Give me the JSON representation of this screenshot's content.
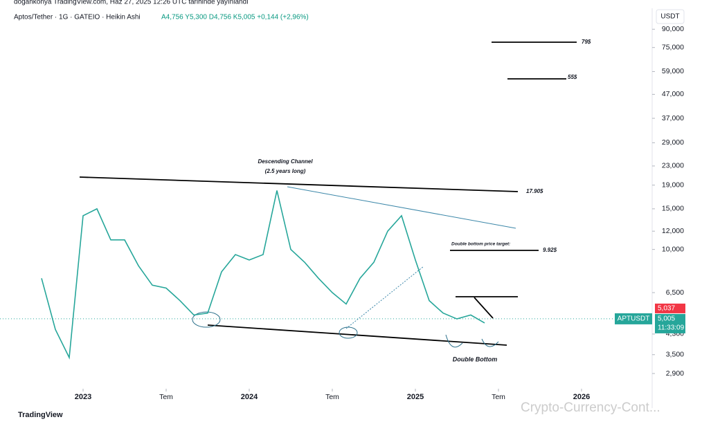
{
  "header": {
    "published": "dogankonya TradingView.com, Haz 27, 2025 12:26 UTC tarihinde yayınlandı",
    "symbol": "Aptos/Tether · 1G · GATEIO · Heikin Ashi",
    "ohlc": "A4,756 Y5,300 D4,756 K5,005 +0,144 (+2,96%)",
    "currency": "USDT",
    "brand": "TradingView",
    "watermark": "Crypto-Currency-Cont..."
  },
  "chart_data": {
    "type": "line",
    "log_scale": true,
    "color": "#26a69a",
    "series": [
      {
        "name": "APTUSDT",
        "color": "#26a69a",
        "values": [
          7.5,
          4.5,
          3.4,
          14,
          15,
          11,
          11,
          8.5,
          7,
          6.8,
          6,
          5.2,
          5.3,
          8,
          9.5,
          9,
          9.5,
          18,
          10,
          8.8,
          7.5,
          6.5,
          5.8,
          7.5,
          8.8,
          12,
          14,
          9,
          6,
          5.3,
          5,
          5.2,
          4.8
        ]
      }
    ],
    "x": [
      "2022-10",
      "2022-11",
      "2022-12",
      "2023-01",
      "2023-02",
      "2023-03",
      "2023-04",
      "2023-05",
      "2023-06",
      "2023-07",
      "2023-08",
      "2023-09",
      "2023-10",
      "2023-11",
      "2023-12",
      "2024-01",
      "2024-02",
      "2024-03",
      "2024-04",
      "2024-05",
      "2024-06",
      "2024-07",
      "2024-08",
      "2024-09",
      "2024-10",
      "2024-11",
      "2024-12",
      "2025-01",
      "2025-02",
      "2025-03",
      "2025-04",
      "2025-05",
      "2025-06"
    ],
    "xlim": [
      "2022-07",
      "2026-06"
    ],
    "xticks": [
      {
        "value": "2023-01",
        "label": "2023"
      },
      {
        "value": "2023-07",
        "label": "Tem"
      },
      {
        "value": "2024-01",
        "label": "2024"
      },
      {
        "value": "2024-07",
        "label": "Tem"
      },
      {
        "value": "2025-01",
        "label": "2025"
      },
      {
        "value": "2025-07",
        "label": "Tem"
      },
      {
        "value": "2026-01",
        "label": "2026"
      }
    ],
    "ylim": [
      2.5,
      100
    ],
    "yticks": [
      {
        "value": 90,
        "label": "90,000"
      },
      {
        "value": 75,
        "label": "75,000"
      },
      {
        "value": 59,
        "label": "59,000"
      },
      {
        "value": 47,
        "label": "47,000"
      },
      {
        "value": 37,
        "label": "37,000"
      },
      {
        "value": 29,
        "label": "29,000"
      },
      {
        "value": 23,
        "label": "23,000"
      },
      {
        "value": 19,
        "label": "19,000"
      },
      {
        "value": 15,
        "label": "15,000"
      },
      {
        "value": 12,
        "label": "12,000"
      },
      {
        "value": 10,
        "label": "10,000"
      },
      {
        "value": 6.5,
        "label": "6,500"
      },
      {
        "value": 4.3,
        "label": "4,300"
      },
      {
        "value": 3.5,
        "label": "3,500"
      },
      {
        "value": 2.9,
        "label": "2,900"
      }
    ],
    "last_price": {
      "value": 5.005,
      "label": "5,005",
      "prev_label": "5,037",
      "countdown": "11:33:09",
      "symbol": "APTUSDT"
    },
    "annotations": {
      "channel": "Descending Channel",
      "channel_note": "(2.5 years long)",
      "top_target": "17.90$",
      "t79": "79$",
      "t55": "55$",
      "db_target_title": "Double bottom price target:",
      "db_target": "9.92$",
      "double_bottom": "Double Bottom"
    }
  }
}
